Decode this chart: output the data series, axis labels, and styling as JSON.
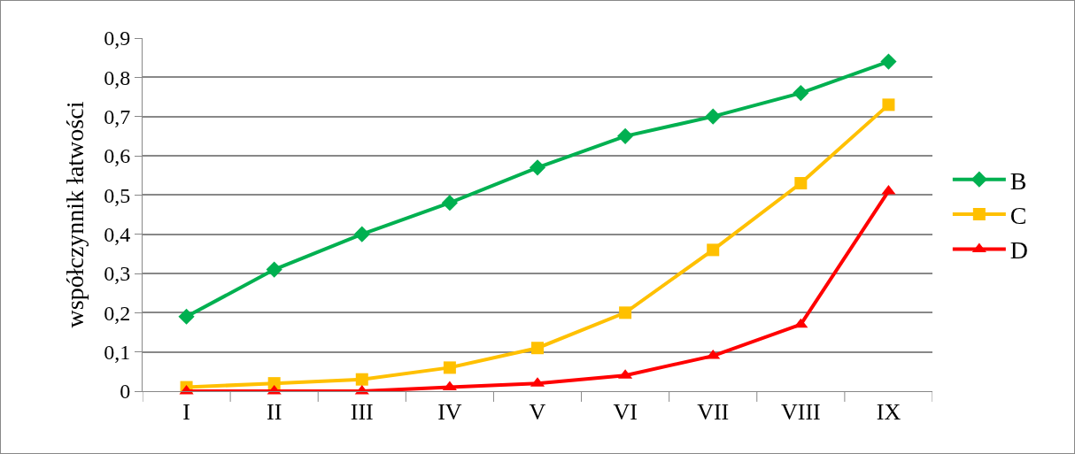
{
  "chart_data": {
    "type": "line",
    "ylabel": "współczynnik łatwości",
    "categories": [
      "I",
      "II",
      "III",
      "IV",
      "V",
      "VI",
      "VII",
      "VIII",
      "IX"
    ],
    "series": [
      {
        "name": "B",
        "color": "#00b050",
        "marker": "diamond",
        "values": [
          0.19,
          0.31,
          0.4,
          0.48,
          0.57,
          0.65,
          0.7,
          0.76,
          0.84
        ]
      },
      {
        "name": "C",
        "color": "#ffc000",
        "marker": "square",
        "values": [
          0.01,
          0.02,
          0.03,
          0.06,
          0.11,
          0.2,
          0.36,
          0.53,
          0.73
        ]
      },
      {
        "name": "D",
        "color": "#ff0000",
        "marker": "triangle",
        "values": [
          0.0,
          0.0,
          0.0,
          0.01,
          0.02,
          0.04,
          0.09,
          0.17,
          0.51
        ]
      }
    ],
    "ylim": [
      0,
      0.9
    ],
    "yticks": [
      0,
      {
        "value": 0.1,
        "label": "0,1"
      },
      {
        "value": 0.2,
        "label": "0,2"
      },
      {
        "value": 0.3,
        "label": "0,3"
      },
      {
        "value": 0.4,
        "label": "0,4"
      },
      {
        "value": 0.5,
        "label": "0,5"
      },
      {
        "value": 0.6,
        "label": "0,6"
      },
      {
        "value": 0.7,
        "label": "0,7"
      },
      {
        "value": 0.8,
        "label": "0,8"
      },
      {
        "value": 0.9,
        "label": "0,9"
      }
    ],
    "grid": "y",
    "legend": "right",
    "line_style": "solid"
  }
}
